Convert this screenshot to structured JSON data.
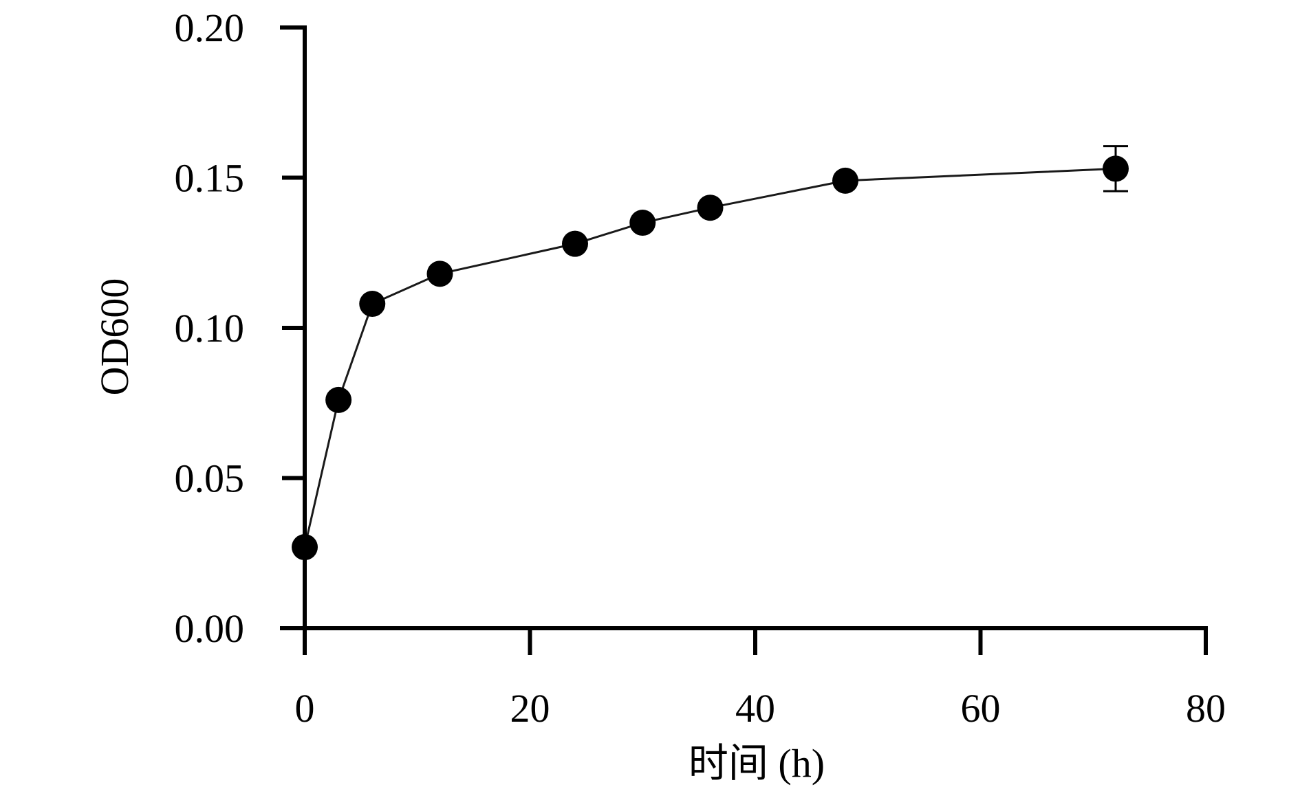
{
  "chart_data": {
    "type": "line",
    "xlabel": "时间 (h)",
    "ylabel": "OD600",
    "xlim": [
      0,
      80
    ],
    "ylim": [
      0,
      0.2
    ],
    "xticks": [
      "0",
      "20",
      "40",
      "60",
      "80"
    ],
    "yticks": [
      "0.00",
      "0.05",
      "0.10",
      "0.15",
      "0.20"
    ],
    "grid": false,
    "series": [
      {
        "x": [
          0,
          3,
          6,
          12,
          24,
          30,
          36,
          48,
          72
        ],
        "y": [
          0.027,
          0.076,
          0.108,
          0.118,
          0.128,
          0.135,
          0.14,
          0.149,
          0.153
        ],
        "yerr": [
          0,
          0,
          0,
          0,
          0,
          0,
          0,
          0,
          0.0075
        ]
      }
    ]
  }
}
